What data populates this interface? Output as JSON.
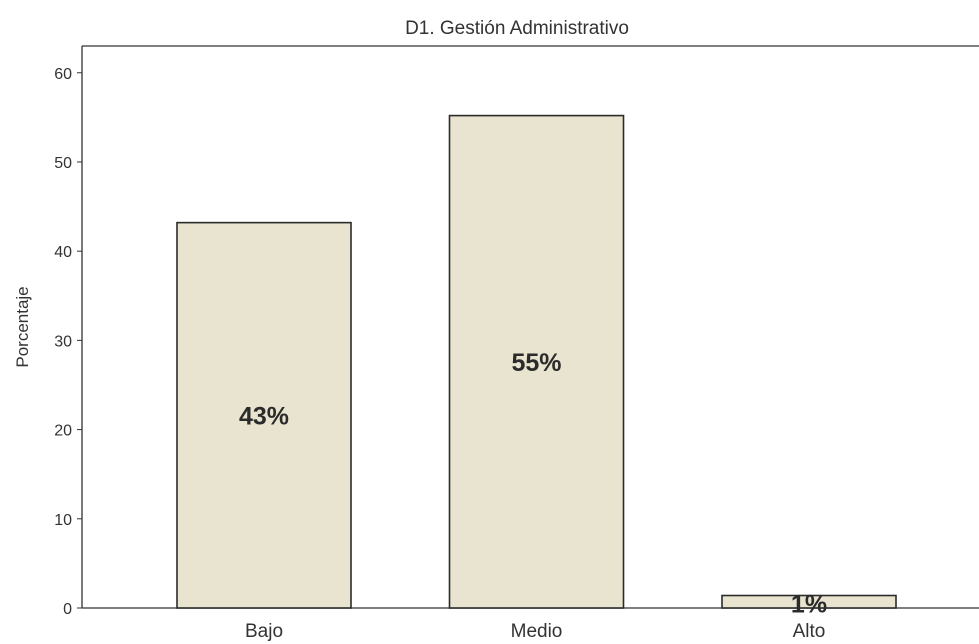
{
  "chart_data": {
    "type": "bar",
    "title": "D1. Gestión Administrativo",
    "xlabel": "",
    "ylabel": "Porcentaje",
    "categories": [
      "Bajo",
      "Medio",
      "Alto"
    ],
    "values": [
      43.2,
      55.2,
      1.4
    ],
    "data_labels": [
      "43%",
      "55%",
      "1%"
    ],
    "ylim": [
      0,
      63
    ],
    "yticks": [
      0,
      10,
      20,
      30,
      40,
      50,
      60
    ],
    "grid": false,
    "legend": "none",
    "colors": {
      "bar_fill": "#e9e4d0",
      "bar_stroke": "#2b2b2b",
      "axis": "#333333",
      "text": "#333333"
    }
  }
}
